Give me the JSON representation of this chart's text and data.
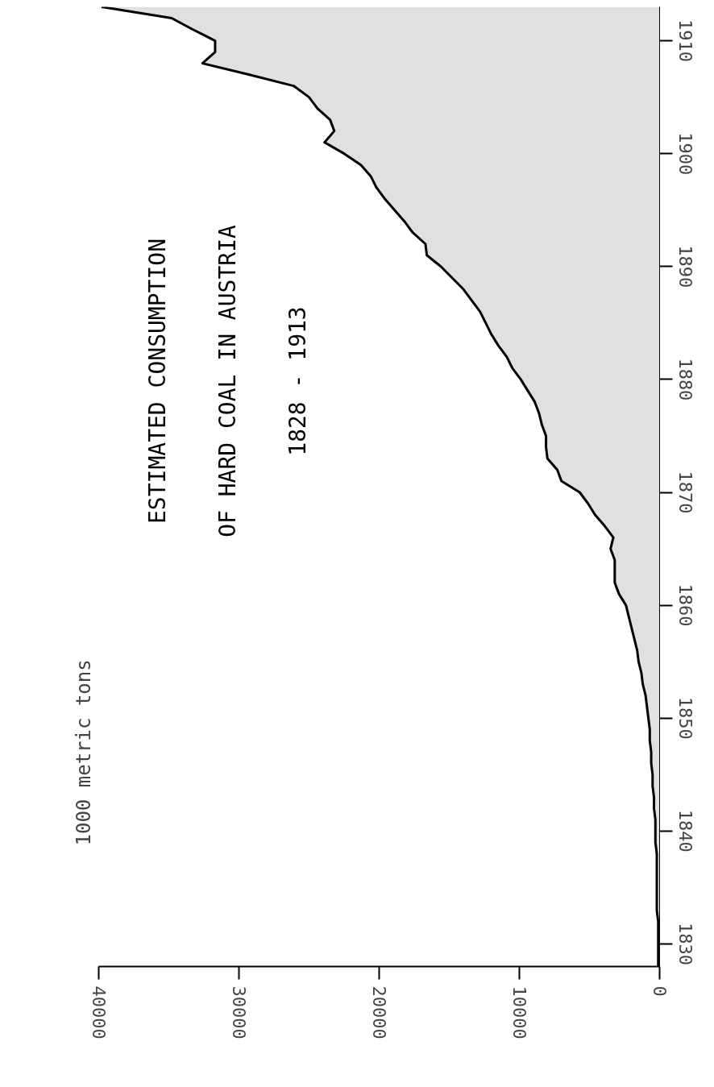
{
  "chart_data": {
    "type": "area",
    "title": "ESTIMATED CONSUMPTION\nOF HARD COAL IN AUSTRIA",
    "subtitle": "1828 - 1913",
    "annotations": [
      "1000 metric tons"
    ],
    "orientation": "horizontal",
    "x": [
      1828,
      1829,
      1830,
      1831,
      1832,
      1833,
      1834,
      1835,
      1836,
      1837,
      1838,
      1839,
      1840,
      1841,
      1842,
      1843,
      1844,
      1845,
      1846,
      1847,
      1848,
      1849,
      1850,
      1851,
      1852,
      1853,
      1854,
      1855,
      1856,
      1857,
      1858,
      1859,
      1860,
      1861,
      1862,
      1863,
      1864,
      1865,
      1866,
      1867,
      1868,
      1869,
      1870,
      1871,
      1872,
      1873,
      1874,
      1875,
      1876,
      1877,
      1878,
      1879,
      1880,
      1881,
      1882,
      1883,
      1884,
      1885,
      1886,
      1887,
      1888,
      1889,
      1890,
      1891,
      1892,
      1893,
      1894,
      1895,
      1896,
      1897,
      1898,
      1899,
      1900,
      1901,
      1902,
      1903,
      1904,
      1905,
      1906,
      1907,
      1908,
      1909,
      1910,
      1911,
      1912,
      1913
    ],
    "series": [
      {
        "color": "#000000",
        "values": [
          100,
          100,
          100,
          100,
          100,
          200,
          200,
          200,
          200,
          200,
          200,
          300,
          300,
          300,
          400,
          400,
          500,
          500,
          600,
          600,
          700,
          700,
          800,
          900,
          1000,
          1200,
          1300,
          1500,
          1600,
          1800,
          2000,
          2200,
          2400,
          2900,
          3200,
          3200,
          3200,
          3500,
          3300,
          3900,
          4600,
          5100,
          5700,
          7000,
          7300,
          8000,
          8100,
          8100,
          8400,
          8600,
          8900,
          9400,
          9900,
          10500,
          10900,
          11500,
          12000,
          12400,
          12800,
          13400,
          14000,
          14800,
          15600,
          16600,
          16700,
          17600,
          18200,
          18900,
          19600,
          20200,
          20600,
          21300,
          22500,
          23900,
          23200,
          23500,
          24400,
          25000,
          26100,
          29300,
          32600,
          31700,
          31700,
          33300,
          34800,
          39800
        ]
      }
    ],
    "ylim": [
      1828,
      1913
    ],
    "xlim": [
      40000,
      0
    ],
    "yticks": [
      1830,
      1840,
      1850,
      1860,
      1870,
      1880,
      1890,
      1900,
      1910
    ],
    "xticks": [
      0,
      10000,
      20000,
      30000,
      40000
    ]
  }
}
